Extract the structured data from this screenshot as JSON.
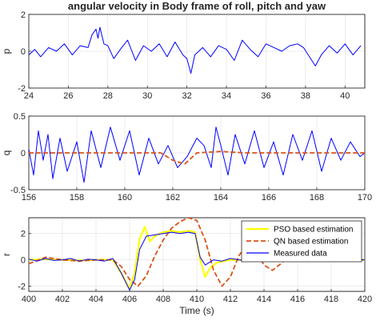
{
  "chart_data": [
    {
      "type": "line",
      "title": "angular velocity in Body frame of roll, pitch and yaw",
      "ylabel": "p",
      "xlabel": "",
      "xlim": [
        24,
        41
      ],
      "ylim": [
        -2,
        2
      ],
      "xticks": [
        24,
        26,
        28,
        30,
        32,
        34,
        36,
        38,
        40
      ],
      "yticks": [
        -2,
        0,
        2
      ],
      "grid": true,
      "series": [
        {
          "name": "Measured data",
          "color": "#0000ff",
          "style": "solid",
          "x": [
            24.0,
            24.3,
            24.6,
            25.0,
            25.4,
            25.8,
            26.2,
            26.6,
            27.0,
            27.2,
            27.4,
            27.5,
            27.6,
            27.8,
            28.0,
            28.3,
            28.7,
            29.0,
            29.4,
            29.8,
            30.2,
            30.6,
            31.0,
            31.4,
            31.8,
            32.0,
            32.2,
            32.4,
            32.8,
            33.2,
            33.6,
            34.0,
            34.4,
            34.8,
            35.2,
            35.6,
            36.0,
            36.4,
            36.8,
            37.2,
            37.6,
            37.9,
            38.2,
            38.5,
            38.8,
            39.2,
            39.6,
            40.0,
            40.4,
            40.8
          ],
          "y": [
            -0.2,
            0.1,
            -0.3,
            0.2,
            0.0,
            0.4,
            -0.2,
            0.3,
            0.2,
            0.9,
            1.2,
            0.7,
            1.3,
            0.4,
            0.3,
            -0.4,
            0.2,
            0.6,
            -0.5,
            0.3,
            0.0,
            0.4,
            -0.3,
            0.5,
            -0.2,
            -0.4,
            -1.2,
            -0.2,
            0.2,
            -0.3,
            0.3,
            0.1,
            -0.5,
            0.6,
            0.1,
            -0.3,
            0.4,
            0.2,
            0.0,
            0.3,
            0.4,
            0.2,
            -0.3,
            -0.8,
            -0.2,
            0.3,
            -0.1,
            0.4,
            -0.2,
            0.3
          ]
        }
      ]
    },
    {
      "type": "line",
      "title": "",
      "ylabel": "q",
      "xlabel": "",
      "xlim": [
        156,
        170
      ],
      "ylim": [
        -0.5,
        0.5
      ],
      "xticks": [
        156,
        158,
        160,
        162,
        164,
        166,
        168,
        170
      ],
      "yticks": [
        -0.5,
        0,
        0.5
      ],
      "grid": true,
      "series": [
        {
          "name": "Measured data",
          "color": "#0000ff",
          "style": "solid",
          "x": [
            156.0,
            156.2,
            156.4,
            156.6,
            156.8,
            157.0,
            157.3,
            157.6,
            158.0,
            158.3,
            158.6,
            159.0,
            159.4,
            159.8,
            160.2,
            160.6,
            161.0,
            161.4,
            161.8,
            162.2,
            162.6,
            163.0,
            163.3,
            163.6,
            163.8,
            164.0,
            164.3,
            164.6,
            165.0,
            165.4,
            165.8,
            166.2,
            166.6,
            167.0,
            167.4,
            167.8,
            168.2,
            168.6,
            169.0,
            169.4,
            169.8,
            170.0
          ],
          "y": [
            0.05,
            -0.3,
            0.3,
            -0.1,
            0.25,
            -0.35,
            0.2,
            -0.25,
            0.15,
            -0.4,
            0.3,
            -0.2,
            0.35,
            -0.1,
            0.3,
            -0.3,
            0.2,
            -0.15,
            0.1,
            -0.2,
            -0.05,
            0.2,
            0.1,
            -0.2,
            0.35,
            0.1,
            -0.3,
            0.25,
            -0.15,
            0.3,
            -0.2,
            0.15,
            -0.3,
            0.25,
            -0.1,
            0.3,
            -0.25,
            0.2,
            -0.1,
            0.15,
            -0.05,
            0.0
          ]
        },
        {
          "name": "QN based estimation",
          "color": "#d95319",
          "style": "dashed",
          "x": [
            156.0,
            158.0,
            160.0,
            161.5,
            162.0,
            162.5,
            163.0,
            164.0,
            165.0,
            166.0,
            167.0,
            168.0,
            169.0,
            170.0
          ],
          "y": [
            0.0,
            0.0,
            0.0,
            0.0,
            -0.1,
            -0.15,
            0.0,
            0.02,
            0.0,
            0.0,
            0.0,
            0.0,
            0.0,
            0.0
          ]
        }
      ]
    },
    {
      "type": "line",
      "title": "",
      "ylabel": "r",
      "xlabel": "Time (s)",
      "xlim": [
        400,
        420
      ],
      "ylim": [
        -2.4,
        3.2
      ],
      "xticks": [
        400,
        402,
        404,
        406,
        408,
        410,
        412,
        414,
        416,
        418,
        420
      ],
      "yticks": [
        -2,
        0,
        2
      ],
      "grid": true,
      "legend": "top-right",
      "series": [
        {
          "name": "PSO based estimation",
          "color": "#ffff00",
          "style": "solid",
          "x": [
            400.0,
            401.0,
            402.0,
            403.0,
            404.0,
            405.0,
            405.5,
            406.0,
            406.3,
            406.6,
            406.9,
            407.2,
            407.5,
            408.0,
            408.5,
            409.0,
            409.5,
            409.9,
            410.2,
            410.5,
            410.8,
            411.2,
            411.6,
            412.0,
            413.0,
            414.0,
            415.0,
            416.0,
            417.0,
            418.0,
            419.0,
            420.0
          ],
          "y": [
            0.0,
            0.05,
            0.0,
            -0.05,
            0.0,
            0.0,
            -1.0,
            -2.2,
            -1.0,
            1.6,
            2.5,
            1.4,
            1.8,
            2.1,
            2.2,
            2.1,
            2.2,
            2.1,
            0.0,
            -1.3,
            -0.6,
            -0.2,
            -0.1,
            0.0,
            0.0,
            0.0,
            0.05,
            0.0,
            0.0,
            0.1,
            0.0,
            0.0
          ]
        },
        {
          "name": "QN based estimation",
          "color": "#d95319",
          "style": "dashed",
          "x": [
            400.0,
            401.0,
            402.0,
            403.0,
            404.0,
            405.0,
            405.5,
            406.0,
            406.5,
            407.0,
            407.5,
            408.0,
            408.5,
            409.0,
            409.5,
            410.0,
            410.5,
            411.0,
            411.5,
            412.0,
            412.5,
            413.0,
            413.5,
            414.0,
            414.5,
            415.0,
            415.5,
            416.0,
            417.0,
            418.0,
            419.0,
            420.0
          ],
          "y": [
            -0.3,
            0.2,
            0.0,
            -0.1,
            0.0,
            0.0,
            -0.5,
            -1.5,
            -2.0,
            -1.2,
            0.3,
            1.5,
            2.4,
            2.9,
            3.2,
            3.0,
            1.5,
            -0.8,
            -2.0,
            -1.3,
            0.3,
            1.2,
            0.7,
            -0.4,
            -0.8,
            -0.3,
            0.3,
            0.2,
            0.0,
            0.1,
            0.0,
            0.0
          ]
        },
        {
          "name": "Measured data",
          "color": "#0000ff",
          "style": "solid",
          "x": [
            400.0,
            400.5,
            401.0,
            401.5,
            402.0,
            402.5,
            403.0,
            403.5,
            404.0,
            404.5,
            405.0,
            405.5,
            406.0,
            406.3,
            406.6,
            407.0,
            407.5,
            408.0,
            408.5,
            409.0,
            409.5,
            409.9,
            410.2,
            410.5,
            411.0,
            411.5,
            412.0,
            413.0,
            414.0,
            415.0,
            416.0,
            417.0,
            418.0,
            419.0,
            420.0
          ],
          "y": [
            0.05,
            -0.1,
            0.1,
            -0.05,
            0.0,
            0.1,
            -0.1,
            0.05,
            0.0,
            -0.1,
            0.1,
            -1.0,
            -2.3,
            -1.5,
            0.8,
            1.8,
            1.9,
            2.0,
            2.1,
            2.0,
            2.1,
            2.0,
            0.2,
            -0.4,
            0.0,
            -0.1,
            0.1,
            -0.1,
            0.05,
            0.1,
            -0.05,
            0.1,
            0.15,
            0.05,
            0.0
          ]
        }
      ]
    }
  ]
}
